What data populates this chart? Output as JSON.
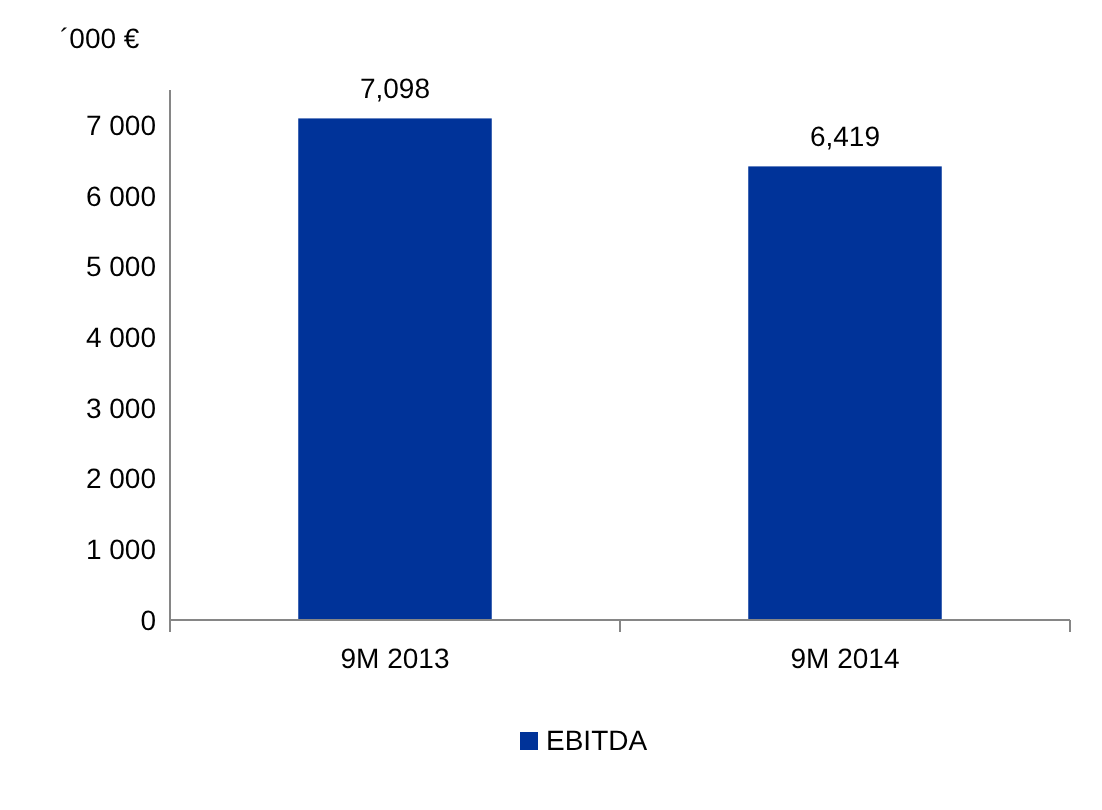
{
  "chart_data": {
    "type": "bar",
    "ylabel": "´000 €",
    "categories": [
      "9M 2013",
      "9M 2014"
    ],
    "series": [
      {
        "name": "EBITDA",
        "color": "#003399",
        "values": [
          7098,
          6419
        ],
        "value_labels": [
          "7,098",
          "6,419"
        ]
      }
    ],
    "ylim": [
      0,
      7500
    ],
    "yticks": [
      {
        "value": 0,
        "label": "0"
      },
      {
        "value": 1000,
        "label": "1 000"
      },
      {
        "value": 2000,
        "label": "2 000"
      },
      {
        "value": 3000,
        "label": "3 000"
      },
      {
        "value": 4000,
        "label": "4 000"
      },
      {
        "value": 5000,
        "label": "5 000"
      },
      {
        "value": 6000,
        "label": "6 000"
      },
      {
        "value": 7000,
        "label": "7 000"
      }
    ],
    "grid": false,
    "legend": "bottom"
  }
}
